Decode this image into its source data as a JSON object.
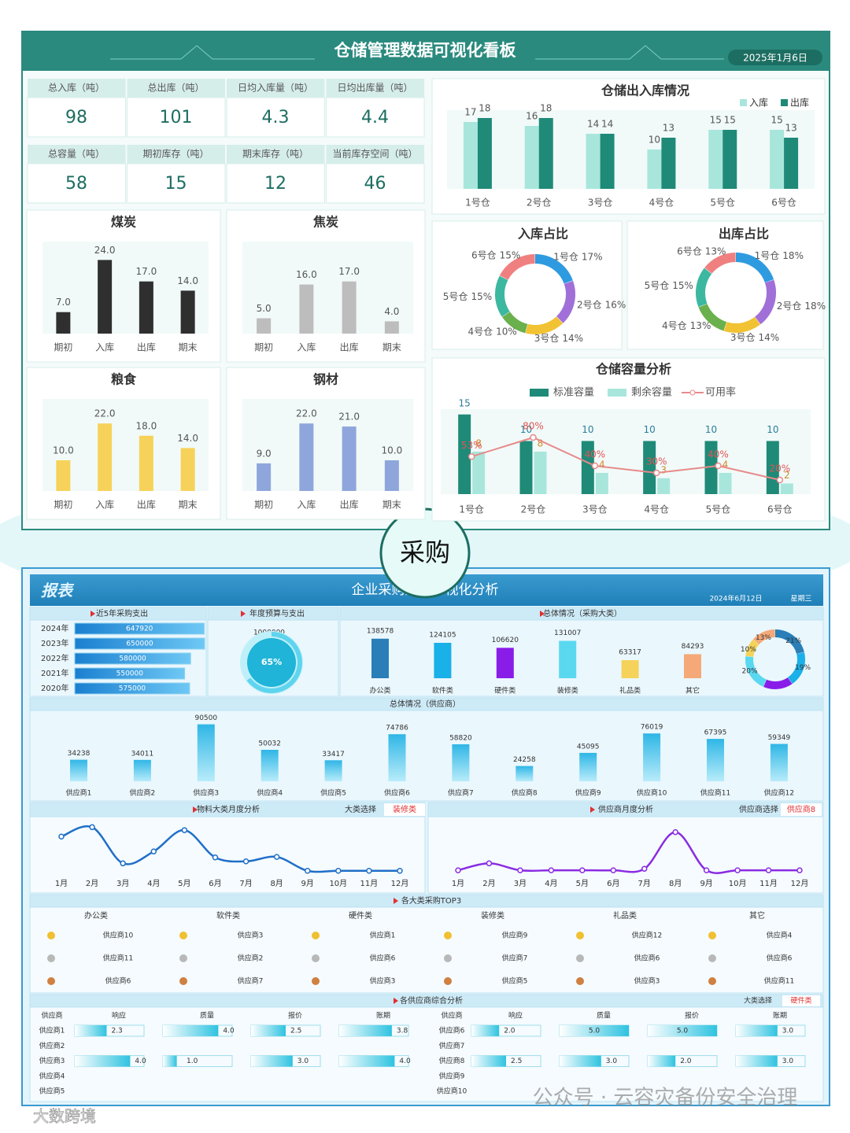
{
  "top": {
    "title": "仓储管理数据可视化看板",
    "date": "2025年1月6日",
    "kpis": [
      {
        "label": "总入库（吨）",
        "value": 98
      },
      {
        "label": "总出库（吨）",
        "value": 101
      },
      {
        "label": "日均入库量（吨）",
        "value": 4.3
      },
      {
        "label": "日均出库量（吨）",
        "value": 4.4
      },
      {
        "label": "总容量（吨）",
        "value": 58
      },
      {
        "label": "期初库存（吨）",
        "value": 15
      },
      {
        "label": "期末库存（吨）",
        "value": 12
      },
      {
        "label": "当前库存空间（吨）",
        "value": 46
      }
    ],
    "materials": [
      {
        "type": "bar",
        "title": "煤炭",
        "categories": [
          "期初",
          "入库",
          "出库",
          "期末"
        ],
        "values": [
          7,
          24,
          17,
          14
        ],
        "value_labels": [
          "7.0",
          "24.0",
          "17.0",
          "14.0"
        ],
        "color": "#2f2f2f",
        "ylim": [
          0,
          30
        ]
      },
      {
        "type": "bar",
        "title": "焦炭",
        "categories": [
          "期初",
          "入库",
          "出库",
          "期末"
        ],
        "values": [
          5,
          16,
          17,
          4
        ],
        "value_labels": [
          "5.0",
          "16.0",
          "17.0",
          "4.0"
        ],
        "color": "#bdbdbd",
        "ylim": [
          0,
          30
        ]
      },
      {
        "type": "bar",
        "title": "粮食",
        "categories": [
          "期初",
          "入库",
          "出库",
          "期末"
        ],
        "values": [
          10,
          22,
          18,
          14
        ],
        "value_labels": [
          "10.0",
          "22.0",
          "18.0",
          "14.0"
        ],
        "color": "#f7d25a",
        "ylim": [
          0,
          30
        ]
      },
      {
        "type": "bar",
        "title": "钢材",
        "categories": [
          "期初",
          "入库",
          "出库",
          "期末"
        ],
        "values": [
          9,
          22,
          21,
          10
        ],
        "value_labels": [
          "9.0",
          "22.0",
          "21.0",
          "10.0"
        ],
        "color": "#8fa6dc",
        "ylim": [
          0,
          30
        ]
      }
    ],
    "inout": {
      "type": "bar",
      "title": "仓储出入库情况",
      "categories": [
        "1号仓",
        "2号仓",
        "3号仓",
        "4号仓",
        "5号仓",
        "6号仓"
      ],
      "series": [
        {
          "name": "入库",
          "color": "#a8e6dc",
          "values": [
            17,
            16,
            14,
            10,
            15,
            15
          ]
        },
        {
          "name": "出库",
          "color": "#1f8a78",
          "values": [
            18,
            18,
            14,
            13,
            15,
            13
          ]
        }
      ],
      "ylim": [
        0,
        20
      ]
    },
    "shares": [
      {
        "type": "donut",
        "title": "入库占比",
        "categories": [
          "1号仓",
          "2号仓",
          "3号仓",
          "4号仓",
          "5号仓",
          "6号仓"
        ],
        "values": [
          17,
          16,
          14,
          10,
          15,
          15
        ],
        "value_labels": [
          "17%",
          "16%",
          "14%",
          "10%",
          "15%",
          "15%"
        ],
        "colors": [
          "#2e9be0",
          "#a070d8",
          "#f1c232",
          "#6ab04c",
          "#3cb8a0",
          "#f08080"
        ]
      },
      {
        "type": "donut",
        "title": "出库占比",
        "categories": [
          "1号仓",
          "2号仓",
          "3号仓",
          "4号仓",
          "5号仓",
          "6号仓"
        ],
        "values": [
          18,
          18,
          14,
          13,
          15,
          13
        ],
        "value_labels": [
          "18%",
          "18%",
          "14%",
          "13%",
          "15%",
          "13%"
        ],
        "colors": [
          "#2e9be0",
          "#a070d8",
          "#f1c232",
          "#6ab04c",
          "#3cb8a0",
          "#f08080"
        ]
      }
    ],
    "capacity": {
      "type": "bar-line",
      "title": "仓储容量分析",
      "categories": [
        "1号仓",
        "2号仓",
        "3号仓",
        "4号仓",
        "5号仓",
        "6号仓"
      ],
      "series": [
        {
          "name": "标准容量",
          "color": "#1f8a78",
          "values": [
            15,
            10,
            10,
            10,
            10,
            10
          ]
        },
        {
          "name": "剩余容量",
          "color": "#a8e6dc",
          "values": [
            8,
            8,
            4,
            3,
            4,
            2
          ]
        },
        {
          "name": "可用率",
          "color": "#e88a8a",
          "axis": "y2",
          "values": [
            53,
            80,
            40,
            30,
            40,
            20
          ],
          "value_labels": [
            "53%",
            "80%",
            "40%",
            "30%",
            "40%",
            "20%"
          ]
        }
      ],
      "ylim": [
        0,
        16
      ],
      "y2lim": [
        0,
        120
      ]
    }
  },
  "badge": "采购",
  "bottom": {
    "logo": "报表",
    "title": "企业采购数据可视化分析",
    "date": "2024年6月12日",
    "weekday": "星期三",
    "yearly": {
      "type": "hbar",
      "title": "近5年采购支出",
      "categories": [
        "2024年",
        "2023年",
        "2022年",
        "2021年",
        "2020年"
      ],
      "values": [
        647920,
        650000,
        580000,
        550000,
        575000
      ],
      "xlim": [
        0,
        650000
      ]
    },
    "budget": {
      "type": "gauge",
      "title": "年度预算与支出",
      "budget": 1000000,
      "value": 65,
      "value_label": "65%",
      "ylim": [
        0,
        100
      ]
    },
    "overview": {
      "type": "bar",
      "title": "总体情况（采购大类）",
      "categories": [
        "办公类",
        "软件类",
        "硬件类",
        "装修类",
        "礼品类",
        "其它"
      ],
      "values": [
        138578,
        124105,
        106620,
        131007,
        63317,
        84293
      ],
      "colors": [
        "#2a7fb8",
        "#1ab0e8",
        "#8a1ce8",
        "#5ad8f0",
        "#f5d35a",
        "#f5a878"
      ],
      "ylim": [
        0,
        160000
      ],
      "share": {
        "type": "donut",
        "values": [
          21,
          19,
          16,
          20,
          10,
          13
        ],
        "value_labels": [
          "21%",
          "19%",
          null,
          "20%",
          "10%",
          "13%"
        ]
      }
    },
    "suppliers": {
      "type": "bar",
      "title": "总体情况（供应商）",
      "categories": [
        "供应商1",
        "供应商2",
        "供应商3",
        "供应商4",
        "供应商5",
        "供应商6",
        "供应商7",
        "供应商8",
        "供应商9",
        "供应商10",
        "供应商11",
        "供应商12"
      ],
      "values": [
        34238,
        34011,
        90500,
        50032,
        33417,
        74786,
        58820,
        24258,
        45095,
        76019,
        67395,
        59349
      ],
      "ylim": [
        0,
        100000
      ]
    },
    "material_monthly": {
      "type": "line",
      "title": "物料大类月度分析",
      "selector_label": "大类选择",
      "selected": "装修类",
      "categories": [
        "1月",
        "2月",
        "3月",
        "4月",
        "5月",
        "6月",
        "7月",
        "8月",
        "9月",
        "10月",
        "11月",
        "12月"
      ],
      "values": [
        71,
        90,
        17,
        41,
        84,
        29,
        21,
        30,
        2,
        2,
        2,
        2
      ],
      "color": "#1f6fc8",
      "ylim": [
        0,
        100
      ]
    },
    "supplier_monthly": {
      "type": "line",
      "title": "供应商月度分析",
      "selector_label": "供应商选择",
      "selected": "供应商8",
      "categories": [
        "1月",
        "2月",
        "3月",
        "4月",
        "5月",
        "6月",
        "7月",
        "8月",
        "9月",
        "10月",
        "11月",
        "12月"
      ],
      "values": [
        3,
        17,
        3,
        3,
        3,
        3,
        6,
        80,
        3,
        3,
        3,
        3
      ],
      "color": "#8a2be2",
      "ylim": [
        0,
        100
      ]
    },
    "top3": {
      "title": "各大类采购TOP3",
      "categories": [
        "办公类",
        "软件类",
        "硬件类",
        "装修类",
        "礼品类",
        "其它"
      ],
      "ranks": [
        [
          "供应商10",
          "供应商11",
          "供应商6"
        ],
        [
          "供应商3",
          "供应商2",
          "供应商7"
        ],
        [
          "供应商1",
          "供应商6",
          "供应商3"
        ],
        [
          "供应商9",
          "供应商7",
          "供应商5"
        ],
        [
          "供应商12",
          "供应商6",
          "供应商3"
        ],
        [
          "供应商4",
          "供应商6",
          "供应商11"
        ]
      ]
    },
    "scores": {
      "title": "各供应商综合分析",
      "selector_label": "大类选择",
      "selected": "硬件类",
      "columns": [
        "供应商",
        "响应",
        "质量",
        "报价",
        "账期"
      ],
      "xlim": [
        0,
        5
      ],
      "groups": [
        [
          {
            "name": "供应商1",
            "values": [
              2.3,
              4,
              2.5,
              3.8
            ],
            "value_labels": [
              "2.3",
              "4.0",
              "2.5",
              "3.8"
            ]
          },
          {
            "name": "供应商2",
            "values": [
              null,
              null,
              null,
              null
            ],
            "value_labels": [
              null,
              null,
              null,
              null
            ]
          },
          {
            "name": "供应商3",
            "values": [
              4,
              1,
              3,
              4
            ],
            "value_labels": [
              "4.0",
              "1.0",
              "3.0",
              "4.0"
            ]
          },
          {
            "name": "供应商4",
            "values": [
              null,
              null,
              null,
              null
            ],
            "value_labels": [
              null,
              null,
              null,
              null
            ]
          },
          {
            "name": "供应商5",
            "values": [
              null,
              null,
              null,
              null
            ],
            "value_labels": [
              null,
              null,
              null,
              null
            ]
          }
        ],
        [
          {
            "name": "供应商6",
            "values": [
              2,
              5,
              5,
              3
            ],
            "value_labels": [
              "2.0",
              "5.0",
              "5.0",
              "3.0"
            ]
          },
          {
            "name": "供应商7",
            "values": [
              null,
              null,
              null,
              null
            ],
            "value_labels": [
              null,
              null,
              null,
              null
            ]
          },
          {
            "name": "供应商8",
            "values": [
              2.5,
              3,
              2,
              3
            ],
            "value_labels": [
              "2.5",
              "3.0",
              "2.0",
              "3.0"
            ]
          },
          {
            "name": "供应商9",
            "values": [
              null,
              null,
              null,
              null
            ],
            "value_labels": [
              null,
              null,
              null,
              null
            ]
          },
          {
            "name": "供应商10",
            "values": [
              null,
              null,
              null,
              null
            ],
            "value_labels": [
              null,
              null,
              null,
              null
            ]
          }
        ]
      ]
    }
  },
  "watermark": "公众号 · 云容灾备份安全治理",
  "watermark2": "大数跨境"
}
